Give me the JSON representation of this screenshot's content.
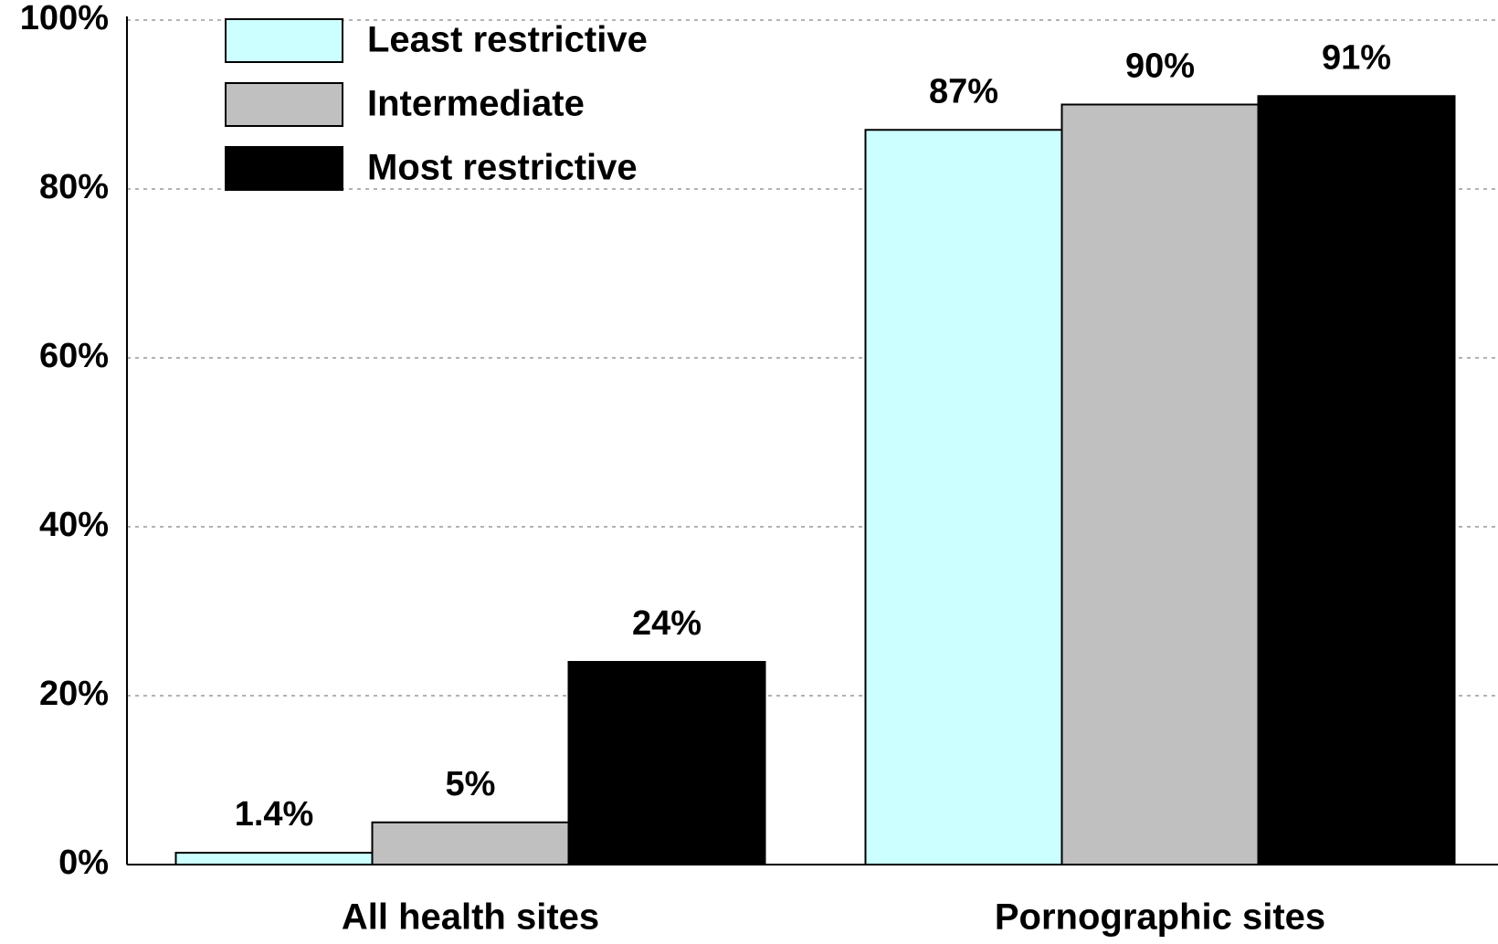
{
  "chart_data": {
    "type": "bar",
    "categories": [
      "All health sites",
      "Pornographic sites"
    ],
    "series": [
      {
        "name": "Least restrictive",
        "color": "#ccffff",
        "values": [
          1.4,
          87
        ],
        "value_labels": [
          "1.4%",
          "87%"
        ]
      },
      {
        "name": "Intermediate",
        "color": "#c0c0c0",
        "values": [
          5,
          90
        ],
        "value_labels": [
          "5%",
          "90%"
        ]
      },
      {
        "name": "Most restrictive",
        "color": "#000000",
        "values": [
          24,
          91
        ],
        "value_labels": [
          "24%",
          "91%"
        ]
      }
    ],
    "ylim": [
      0,
      100
    ],
    "yticks": [
      {
        "value": 0,
        "label": "0%"
      },
      {
        "value": 20,
        "label": "20%"
      },
      {
        "value": 40,
        "label": "40%"
      },
      {
        "value": 60,
        "label": "60%"
      },
      {
        "value": 80,
        "label": "80%"
      },
      {
        "value": 100,
        "label": "100%"
      }
    ],
    "grid": true,
    "legend": "upper left"
  }
}
